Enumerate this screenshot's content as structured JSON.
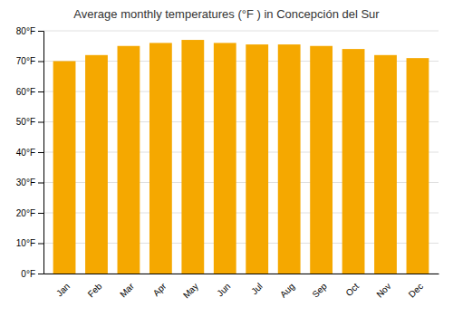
{
  "chart_data": {
    "type": "bar",
    "title": "Average monthly temperatures (°F ) in Concepción del Sur",
    "categories": [
      "Jan",
      "Feb",
      "Mar",
      "Apr",
      "May",
      "Jun",
      "Jul",
      "Aug",
      "Sep",
      "Oct",
      "Nov",
      "Dec"
    ],
    "values": [
      70,
      72,
      75,
      76,
      77,
      76,
      75.5,
      75.5,
      75,
      74,
      72,
      71
    ],
    "color": "#F5A800",
    "ylim": [
      0,
      80
    ],
    "yticks": [
      {
        "value": 0,
        "label": "0°F"
      },
      {
        "value": 10,
        "label": "10°F"
      },
      {
        "value": 20,
        "label": "20°F"
      },
      {
        "value": 30,
        "label": "30°F"
      },
      {
        "value": 40,
        "label": "40°F"
      },
      {
        "value": 50,
        "label": "50°F"
      },
      {
        "value": 60,
        "label": "60°F"
      },
      {
        "value": 70,
        "label": "70°F"
      },
      {
        "value": 80,
        "label": "80°F"
      }
    ],
    "grid": true
  }
}
